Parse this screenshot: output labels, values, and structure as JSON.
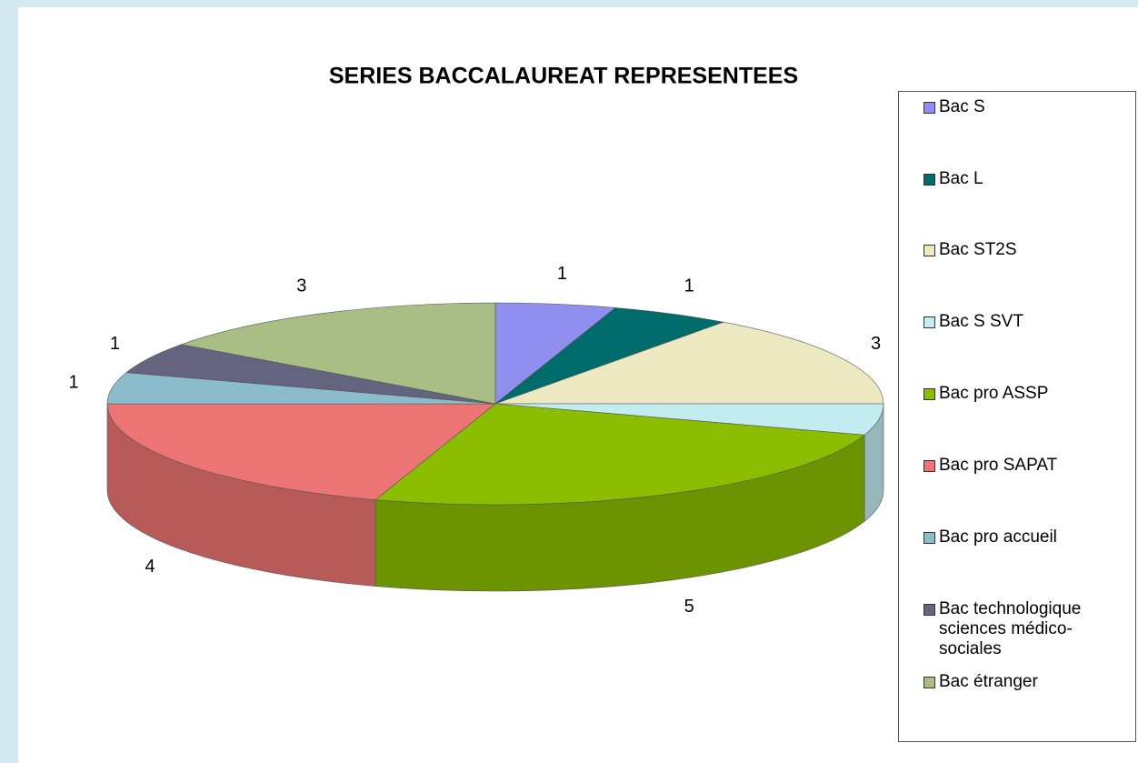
{
  "chart_data": {
    "type": "pie3d",
    "title": "SERIES BACCALAUREAT REPRESENTEES",
    "categories": [
      "Bac S",
      "Bac L",
      "Bac ST2S",
      "Bac S SVT",
      "Bac pro ASSP",
      "Bac pro SAPAT",
      "Bac pro accueil",
      "Bac technologique sciences médico-sociales",
      "Bac étranger"
    ],
    "values": [
      1,
      1,
      3,
      1,
      5,
      4,
      1,
      1,
      3
    ],
    "colors": [
      "#8f8ff0",
      "#006b6b",
      "#ece9c0",
      "#c2ecf0",
      "#8bbd00",
      "#ec7474",
      "#8bbccc",
      "#646480",
      "#a9be85"
    ],
    "legend": "right"
  }
}
